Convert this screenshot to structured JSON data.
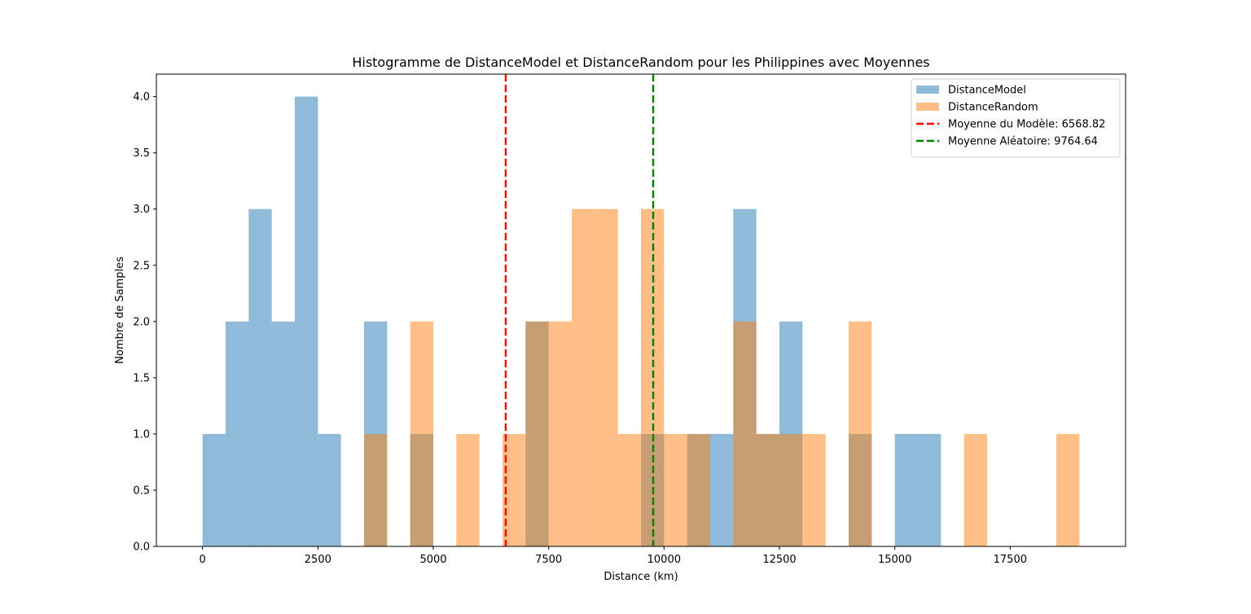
{
  "chart_data": {
    "type": "bar",
    "title": "Histogramme de DistanceModel et DistanceRandom pour les Philippines avec Moyennes",
    "xlabel": "Distance (km)",
    "ylabel": "Nombre de Samples",
    "xlim": [
      -1000,
      20000
    ],
    "ylim": [
      0,
      4.2
    ],
    "xticks": [
      0,
      2500,
      5000,
      7500,
      10000,
      12500,
      15000,
      17500
    ],
    "xtick_labels": [
      "0",
      "2500",
      "5000",
      "7500",
      "10000",
      "12500",
      "15000",
      "17500"
    ],
    "yticks": [
      0,
      0.5,
      1,
      1.5,
      2,
      2.5,
      3,
      3.5,
      4
    ],
    "ytick_labels": [
      "0.0",
      "0.5",
      "1.0",
      "1.5",
      "2.0",
      "2.5",
      "3.0",
      "3.5",
      "4.0"
    ],
    "bin_width": 500,
    "grid": false,
    "legend_position": "top-right",
    "series": [
      {
        "name": "DistanceModel",
        "color": "#1f77b4",
        "alpha": 0.5,
        "bins": [
          {
            "start": 0,
            "count": 1
          },
          {
            "start": 500,
            "count": 2
          },
          {
            "start": 1000,
            "count": 3
          },
          {
            "start": 1500,
            "count": 2
          },
          {
            "start": 2000,
            "count": 4
          },
          {
            "start": 2500,
            "count": 1
          },
          {
            "start": 3500,
            "count": 2
          },
          {
            "start": 4500,
            "count": 1
          },
          {
            "start": 7000,
            "count": 2
          },
          {
            "start": 9500,
            "count": 1
          },
          {
            "start": 10500,
            "count": 1
          },
          {
            "start": 11000,
            "count": 1
          },
          {
            "start": 11500,
            "count": 3
          },
          {
            "start": 12000,
            "count": 1
          },
          {
            "start": 12500,
            "count": 2
          },
          {
            "start": 14000,
            "count": 1
          },
          {
            "start": 15000,
            "count": 1
          },
          {
            "start": 15500,
            "count": 1
          }
        ]
      },
      {
        "name": "DistanceRandom",
        "color": "#ff7f0e",
        "alpha": 0.5,
        "bins": [
          {
            "start": 3500,
            "count": 1
          },
          {
            "start": 4500,
            "count": 2
          },
          {
            "start": 5500,
            "count": 1
          },
          {
            "start": 6500,
            "count": 1
          },
          {
            "start": 7000,
            "count": 2
          },
          {
            "start": 7500,
            "count": 2
          },
          {
            "start": 8000,
            "count": 3
          },
          {
            "start": 8500,
            "count": 3
          },
          {
            "start": 9000,
            "count": 1
          },
          {
            "start": 9500,
            "count": 3
          },
          {
            "start": 10000,
            "count": 1
          },
          {
            "start": 10500,
            "count": 1
          },
          {
            "start": 11500,
            "count": 2
          },
          {
            "start": 12000,
            "count": 1
          },
          {
            "start": 12500,
            "count": 1
          },
          {
            "start": 13000,
            "count": 1
          },
          {
            "start": 14000,
            "count": 2
          },
          {
            "start": 16500,
            "count": 1
          },
          {
            "start": 18500,
            "count": 1
          }
        ]
      }
    ],
    "mean_lines": [
      {
        "name": "Moyenne du Modèle: 6568.82",
        "value": 6568.82,
        "color": "#ff0000"
      },
      {
        "name": "Moyenne Aléatoire: 9764.64",
        "value": 9764.64,
        "color": "#008000"
      }
    ]
  }
}
